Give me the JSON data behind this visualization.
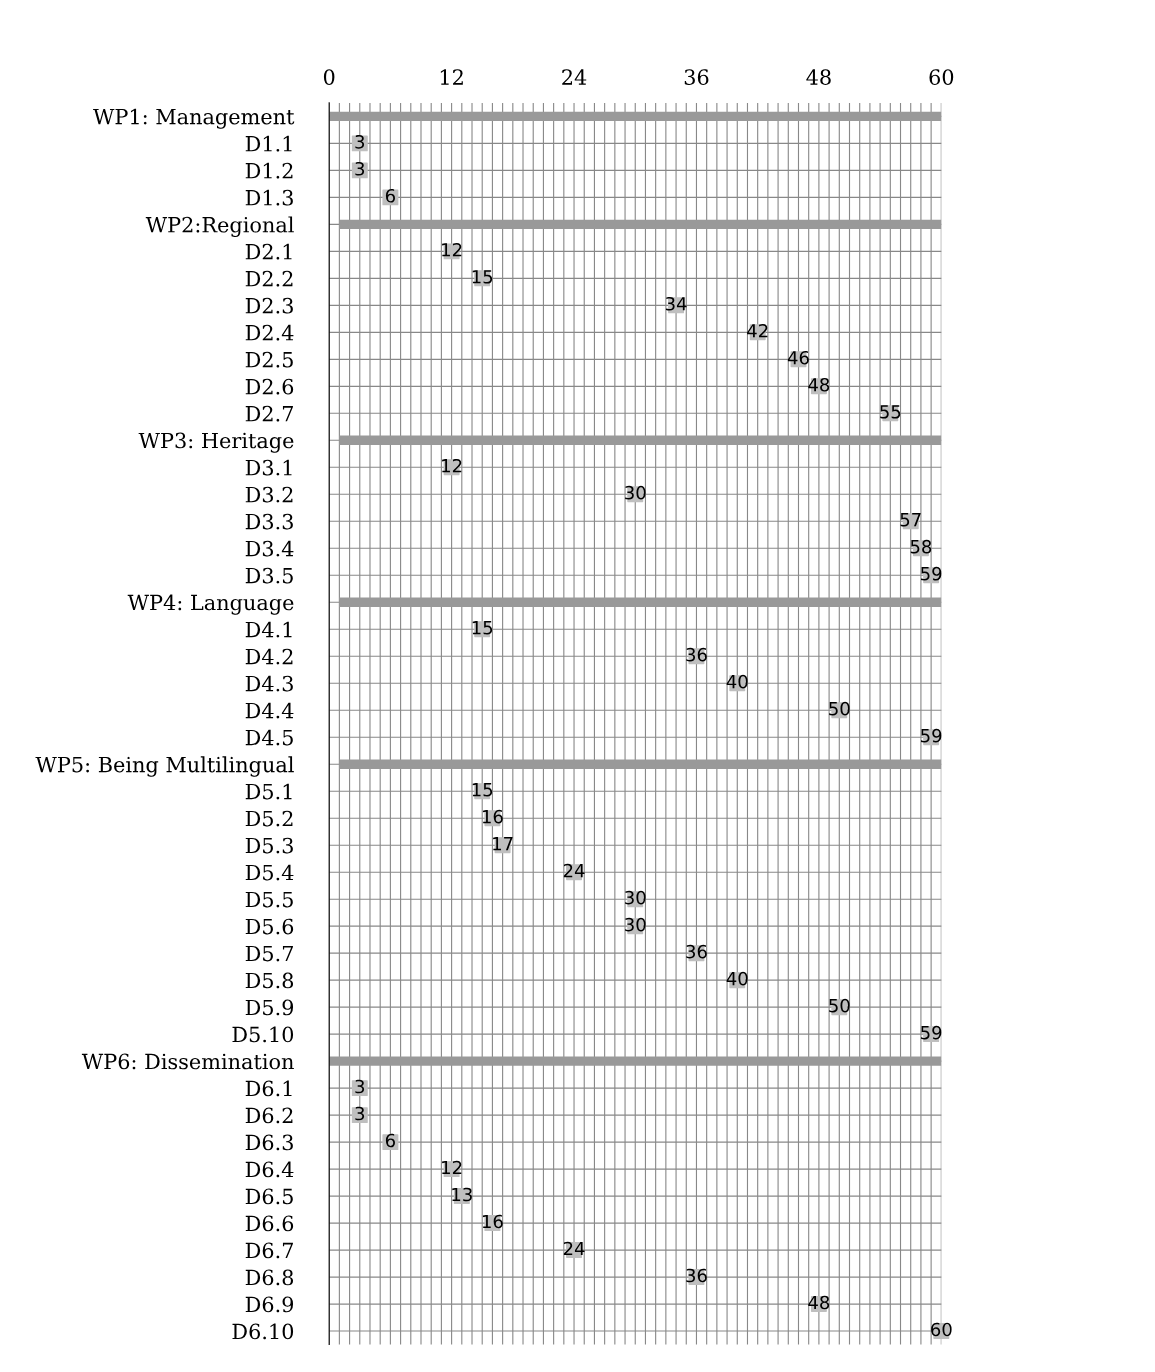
{
  "chart_data": {
    "type": "bar",
    "orientation": "horizontal",
    "categories": [
      "WP1: Management",
      "D1.1",
      "D1.2",
      "D1.3",
      "WP2:Regional",
      "D2.1",
      "D2.2",
      "D2.3",
      "D2.4",
      "D2.5",
      "D2.6",
      "D2.7",
      "WP3: Heritage",
      "D3.1",
      "D3.2",
      "D3.3",
      "D3.4",
      "D3.5",
      "WP4: Language",
      "D4.1",
      "D4.2",
      "D4.3",
      "D4.4",
      "D4.5",
      "WP5: Being Multilingual",
      "D5.1",
      "D5.2",
      "D5.3",
      "D5.4",
      "D5.5",
      "D5.6",
      "D5.7",
      "D5.8",
      "D5.9",
      "D5.10",
      "WP6: Dissemination",
      "D6.1",
      "D6.2",
      "D6.3",
      "D6.4",
      "D6.5",
      "D6.6",
      "D6.7",
      "D6.8",
      "D6.9",
      "D6.10"
    ],
    "series": [
      {
        "color": "#999999",
        "base": [
          0,
          null,
          null,
          null,
          1,
          null,
          null,
          null,
          null,
          null,
          null,
          null,
          1,
          null,
          null,
          null,
          null,
          null,
          1,
          null,
          null,
          null,
          null,
          null,
          1,
          null,
          null,
          null,
          null,
          null,
          null,
          null,
          null,
          null,
          null,
          0,
          null,
          null,
          null,
          null,
          null,
          null,
          null,
          null,
          null,
          null
        ],
        "values": [
          60,
          null,
          null,
          null,
          59,
          null,
          null,
          null,
          null,
          null,
          null,
          null,
          59,
          null,
          null,
          null,
          null,
          null,
          59,
          null,
          null,
          null,
          null,
          null,
          59,
          null,
          null,
          null,
          null,
          null,
          null,
          null,
          null,
          null,
          null,
          60,
          null,
          null,
          null,
          null,
          null,
          null,
          null,
          null,
          null,
          null
        ]
      },
      {
        "type": "scatter",
        "color": "#bfbfbf",
        "marker": "square",
        "data_labels": true,
        "values": [
          null,
          3,
          3,
          6,
          null,
          12,
          15,
          34,
          42,
          46,
          48,
          55,
          null,
          12,
          30,
          57,
          58,
          59,
          null,
          15,
          36,
          40,
          50,
          59,
          null,
          15,
          16,
          17,
          24,
          30,
          30,
          36,
          40,
          50,
          59,
          null,
          3,
          3,
          6,
          12,
          13,
          16,
          24,
          36,
          48,
          60
        ]
      }
    ],
    "xlim": [
      0,
      60
    ],
    "xticks": [
      0,
      {
        "value": 1,
        "label": null
      },
      {
        "value": 2,
        "label": null
      },
      {
        "value": 3,
        "label": null
      },
      {
        "value": 4,
        "label": null
      },
      {
        "value": 5,
        "label": null
      },
      {
        "value": 6,
        "label": null
      },
      {
        "value": 7,
        "label": null
      },
      {
        "value": 8,
        "label": null
      },
      {
        "value": 9,
        "label": null
      },
      {
        "value": 10,
        "label": null
      },
      {
        "value": 11,
        "label": null
      },
      12,
      {
        "value": 13,
        "label": null
      },
      {
        "value": 14,
        "label": null
      },
      {
        "value": 15,
        "label": null
      },
      {
        "value": 16,
        "label": null
      },
      {
        "value": 17,
        "label": null
      },
      {
        "value": 18,
        "label": null
      },
      {
        "value": 19,
        "label": null
      },
      {
        "value": 20,
        "label": null
      },
      {
        "value": 21,
        "label": null
      },
      {
        "value": 22,
        "label": null
      },
      {
        "value": 23,
        "label": null
      },
      24,
      {
        "value": 25,
        "label": null
      },
      {
        "value": 26,
        "label": null
      },
      {
        "value": 27,
        "label": null
      },
      {
        "value": 28,
        "label": null
      },
      {
        "value": 29,
        "label": null
      },
      {
        "value": 30,
        "label": null
      },
      {
        "value": 31,
        "label": null
      },
      {
        "value": 32,
        "label": null
      },
      {
        "value": 33,
        "label": null
      },
      {
        "value": 34,
        "label": null
      },
      {
        "value": 35,
        "label": null
      },
      36,
      {
        "value": 37,
        "label": null
      },
      {
        "value": 38,
        "label": null
      },
      {
        "value": 39,
        "label": null
      },
      {
        "value": 40,
        "label": null
      },
      {
        "value": 41,
        "label": null
      },
      {
        "value": 42,
        "label": null
      },
      {
        "value": 43,
        "label": null
      },
      {
        "value": 44,
        "label": null
      },
      {
        "value": 45,
        "label": null
      },
      {
        "value": 46,
        "label": null
      },
      {
        "value": 47,
        "label": null
      },
      48,
      {
        "value": 49,
        "label": null
      },
      {
        "value": 50,
        "label": null
      },
      {
        "value": 51,
        "label": null
      },
      {
        "value": 52,
        "label": null
      },
      {
        "value": 53,
        "label": null
      },
      {
        "value": 54,
        "label": null
      },
      {
        "value": 55,
        "label": null
      },
      {
        "value": 56,
        "label": null
      },
      {
        "value": 57,
        "label": null
      },
      {
        "value": 58,
        "label": null
      },
      {
        "value": 59,
        "label": null
      },
      60
    ],
    "grid": true
  }
}
